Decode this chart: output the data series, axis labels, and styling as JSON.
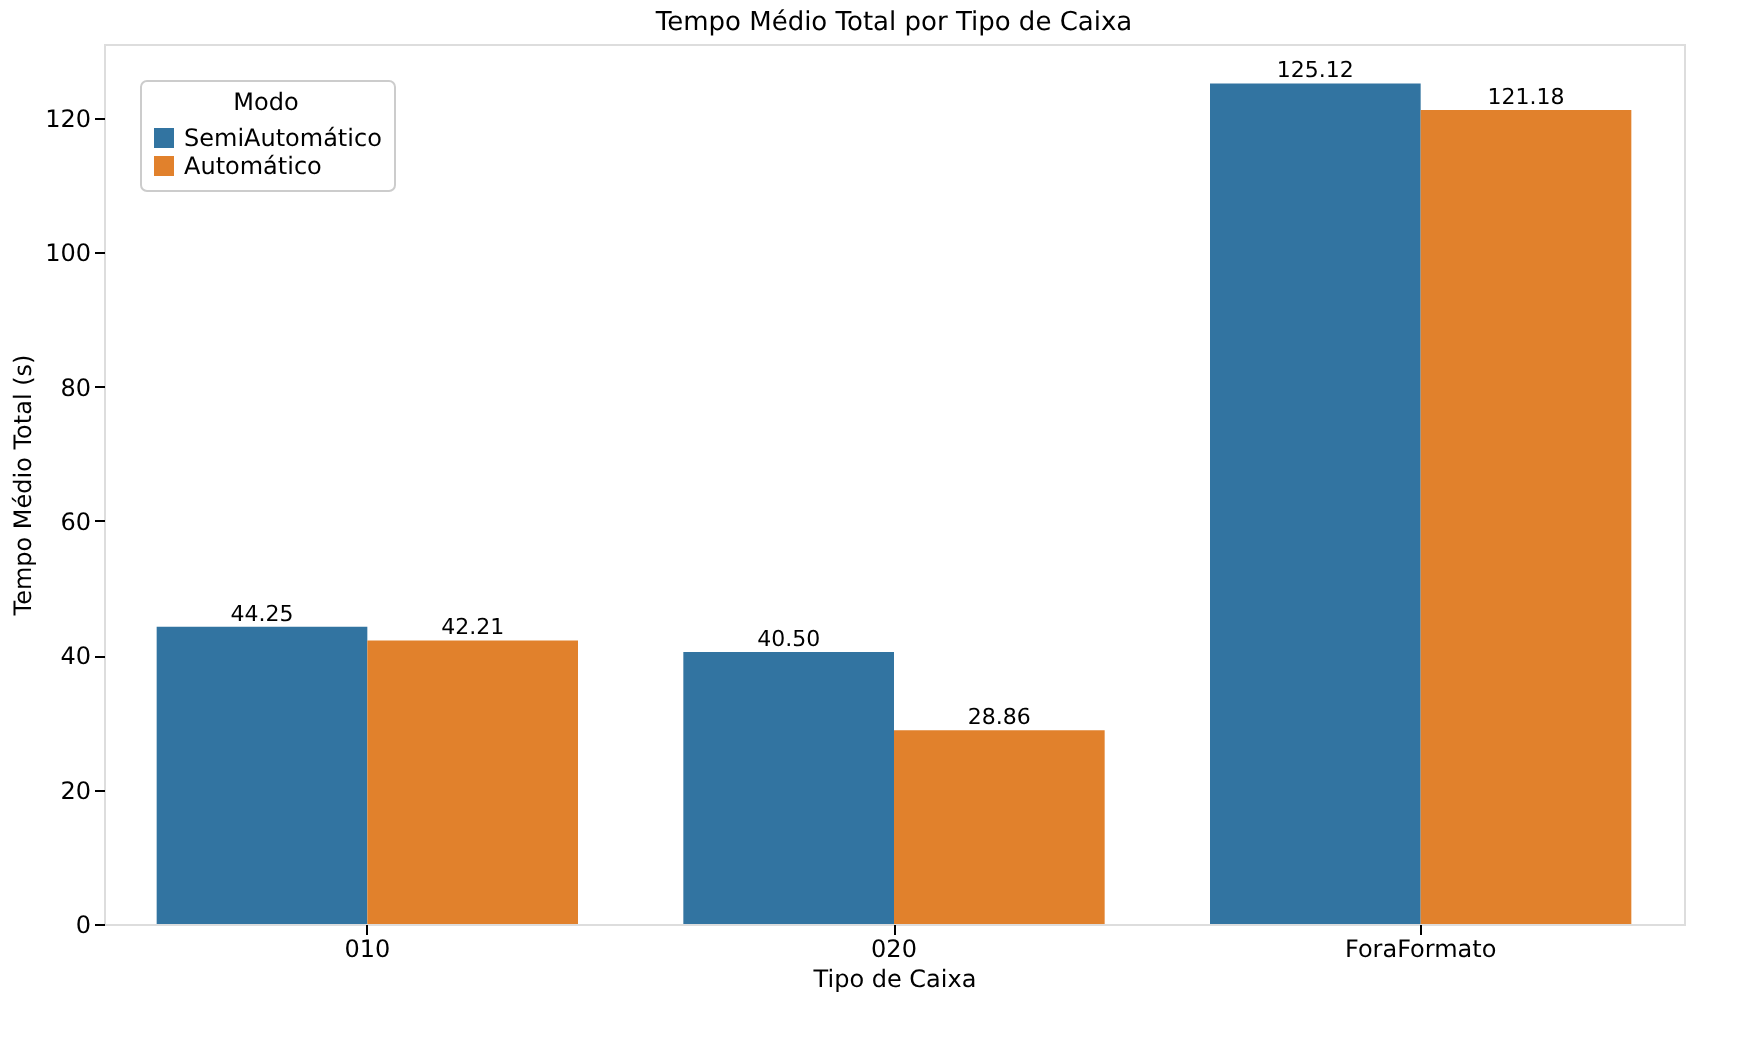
{
  "chart_data": {
    "type": "bar",
    "title": "Tempo Médio Total por Tipo de Caixa",
    "xlabel": "Tipo de Caixa",
    "ylabel": "Tempo Médio Total (s)",
    "legend_title": "Modo",
    "categories": [
      "010",
      "020",
      "ForaFormato"
    ],
    "series": [
      {
        "name": "SemiAutomático",
        "color": "#3274a1",
        "values": [
          44.25,
          40.5,
          125.12
        ],
        "value_labels": [
          "44.25",
          "40.50",
          "125.12"
        ]
      },
      {
        "name": "Automático",
        "color": "#e1812c",
        "values": [
          42.21,
          28.86,
          121.18
        ],
        "value_labels": [
          "42.21",
          "28.86",
          "121.18"
        ]
      }
    ],
    "ylim": [
      0,
      131
    ],
    "yticks": [
      0,
      20,
      40,
      60,
      80,
      100,
      120
    ],
    "grid": false,
    "legend": "top left"
  }
}
